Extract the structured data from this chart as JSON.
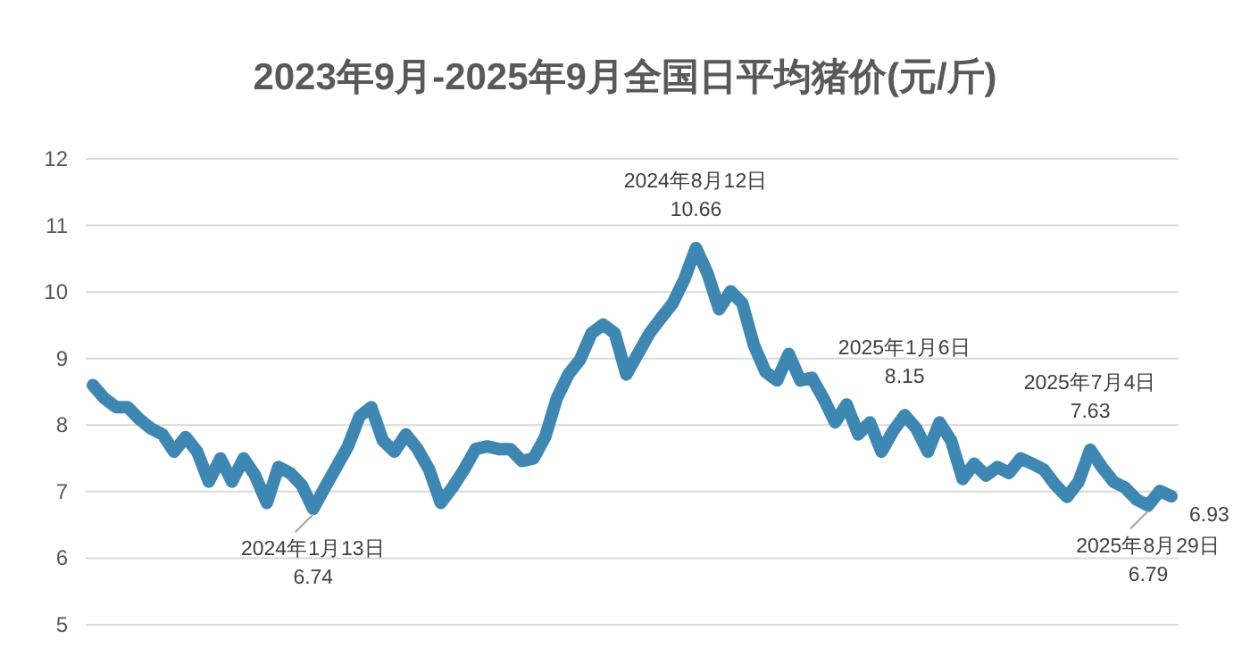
{
  "chart_data": {
    "type": "line",
    "title": "2023年9月-2025年9月全国日平均猪价(元/斤)",
    "color": "#3f87b3",
    "grid": "y",
    "tick_labels": "y",
    "ylim": [
      5,
      12
    ],
    "yticks": [
      5,
      6,
      7,
      8,
      9,
      10,
      11,
      12
    ],
    "categories": [
      null,
      null,
      null,
      null,
      null,
      null,
      null,
      null,
      null,
      null,
      null,
      null,
      null,
      null,
      null,
      null,
      null,
      null,
      null,
      null,
      null,
      null,
      null,
      null,
      null,
      null,
      null,
      null,
      null,
      null,
      null,
      null,
      null,
      null,
      null,
      null,
      null,
      null,
      null,
      null,
      null,
      null,
      null,
      null,
      null,
      null,
      null,
      null,
      null,
      null,
      null,
      null,
      null,
      null,
      null,
      null,
      null,
      null,
      null,
      null,
      null,
      null,
      null,
      null,
      null,
      null,
      null,
      null,
      null,
      null,
      null,
      null,
      null,
      null,
      null,
      null,
      null,
      null,
      null,
      null,
      null,
      null,
      null,
      null,
      null,
      null,
      null,
      null,
      null,
      null,
      null,
      null,
      null,
      null
    ],
    "values": [
      8.6,
      8.4,
      8.27,
      8.27,
      8.09,
      7.95,
      7.86,
      7.6,
      7.82,
      7.6,
      7.15,
      7.5,
      7.15,
      7.5,
      7.24,
      6.83,
      7.37,
      7.28,
      7.1,
      6.74,
      7.06,
      7.37,
      7.68,
      8.13,
      8.27,
      7.77,
      7.6,
      7.86,
      7.64,
      7.33,
      6.83,
      7.06,
      7.33,
      7.64,
      7.68,
      7.64,
      7.64,
      7.46,
      7.5,
      7.82,
      8.4,
      8.76,
      8.98,
      9.38,
      9.51,
      9.38,
      8.76,
      9.07,
      9.38,
      9.61,
      9.83,
      10.19,
      10.66,
      10.28,
      9.74,
      10.01,
      9.83,
      9.2,
      8.8,
      8.67,
      9.07,
      8.67,
      8.71,
      8.4,
      8.04,
      8.31,
      7.86,
      8.04,
      7.6,
      7.91,
      8.15,
      7.95,
      7.6,
      8.04,
      7.77,
      7.19,
      7.42,
      7.24,
      7.37,
      7.28,
      7.5,
      7.42,
      7.33,
      7.1,
      6.92,
      7.15,
      7.63,
      7.37,
      7.15,
      7.06,
      6.88,
      6.79,
      7.01,
      6.93
    ],
    "annotations": [
      {
        "text": "2024年1月13日\n6.74",
        "y": 6.74
      },
      {
        "text": "2024年8月12日\n10.66",
        "y": 10.66
      },
      {
        "text": "2025年1月6日\n8.15",
        "y": 8.15
      },
      {
        "text": "2025年7月4日\n7.63",
        "y": 7.63
      },
      {
        "text": "2025年8月29日\n6.79",
        "y": 6.79
      },
      "6.93"
    ]
  }
}
